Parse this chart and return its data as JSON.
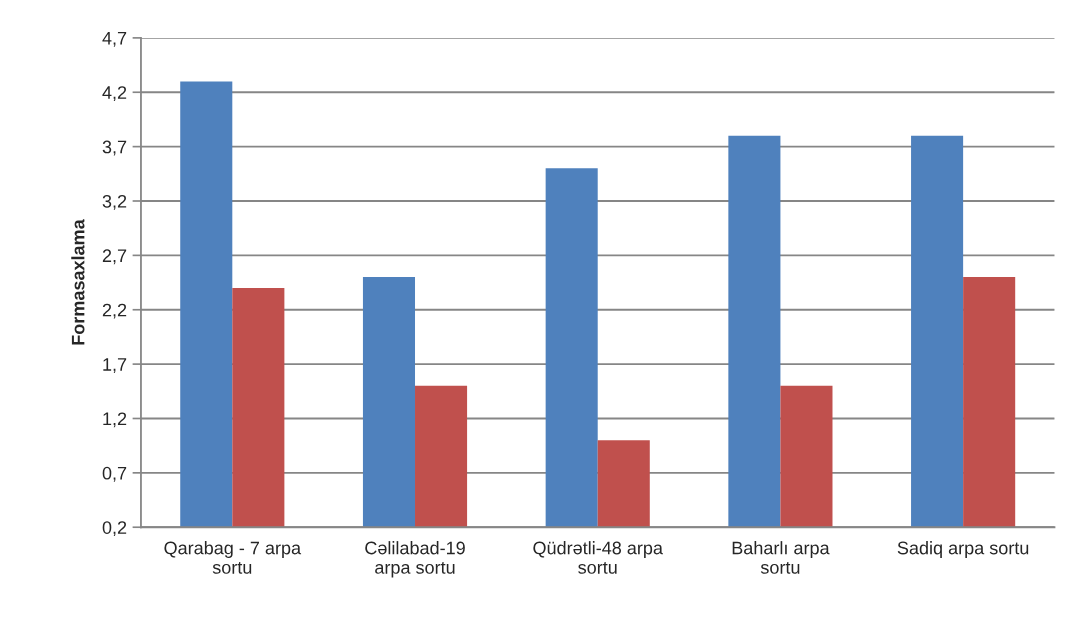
{
  "chart_data": {
    "type": "bar",
    "ylabel": "Formasaxlama",
    "categories": [
      "Qarabag - 7 arpa\nsortu",
      "Cəlilabad-19\narpa sortu",
      "Qüdrətli-48 arpa\nsortu",
      "Baharlı arpa\nsortu",
      "Sadiq arpa sortu"
    ],
    "series": [
      {
        "color": "#4f81bd",
        "values": [
          4.3,
          2.5,
          3.5,
          3.8,
          3.8
        ]
      },
      {
        "color": "#c0504d",
        "values": [
          2.4,
          1.5,
          1.0,
          1.5,
          2.5
        ]
      }
    ],
    "ylim": [
      0.2,
      4.7
    ],
    "yticks": [
      {
        "value": 0.2,
        "label": "0,2"
      },
      {
        "value": 0.7,
        "label": "0,7"
      },
      {
        "value": 1.2,
        "label": "1,2"
      },
      {
        "value": 1.7,
        "label": "1,7"
      },
      {
        "value": 2.2,
        "label": "2,2"
      },
      {
        "value": 2.7,
        "label": "2,7"
      },
      {
        "value": 3.2,
        "label": "3,2"
      },
      {
        "value": 3.7,
        "label": "3,7"
      },
      {
        "value": 4.2,
        "label": "4,2"
      },
      {
        "value": 4.7,
        "label": "4,7"
      }
    ],
    "grid": "y"
  }
}
